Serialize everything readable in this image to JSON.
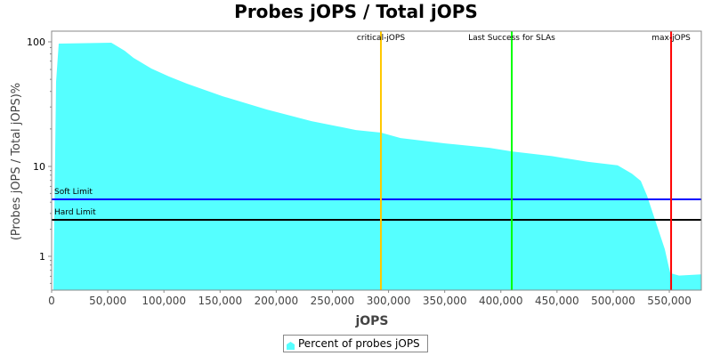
{
  "chart_data": {
    "type": "area",
    "title": "Probes jOPS / Total jOPS",
    "xlabel": "jOPS",
    "ylabel": "(Probes jOPS / Total jOPS)%",
    "xlim": [
      0,
      578500
    ],
    "ylim": [
      0.42,
      122
    ],
    "yscale": "log",
    "grid": false,
    "legend_position": "bottom",
    "x_ticks": [
      0,
      50000,
      100000,
      150000,
      200000,
      250000,
      300000,
      350000,
      400000,
      450000,
      500000,
      550000
    ],
    "x_tick_labels": [
      "0",
      "50,000",
      "100,000",
      "150,000",
      "200,000",
      "250,000",
      "300,000",
      "350,000",
      "400,000",
      "450,000",
      "500,000",
      "550,000"
    ],
    "y_ticks": [
      1,
      10,
      100
    ],
    "y_tick_labels": [
      "1",
      "10",
      "100"
    ],
    "series": [
      {
        "name": "Percent of probes jOPS",
        "color": "#55FFFF",
        "x": [
          1600,
          3960,
          6340,
          53100,
          65000,
          72900,
          88800,
          104600,
          120500,
          152200,
          191800,
          231400,
          271000,
          293200,
          310700,
          350300,
          389900,
          409700,
          445400,
          477100,
          504000,
          516700,
          524600,
          530200,
          537300,
          546000,
          550800,
          558700,
          578500
        ],
        "y": [
          0.42,
          47.7,
          96.8,
          98.4,
          84.9,
          74.3,
          61.1,
          52.6,
          46.2,
          36.6,
          28.6,
          23.1,
          19.6,
          18.7,
          16.9,
          15.3,
          14.1,
          13.2,
          12.1,
          10.9,
          10.2,
          8.3,
          6.9,
          4.71,
          2.55,
          1.2,
          0.65,
          0.61,
          0.63
        ]
      }
    ],
    "horizontal_markers": [
      {
        "label": "Soft Limit",
        "value": 4.3,
        "color": "#0000FF"
      },
      {
        "label": "Hard Limit",
        "value": 2.55,
        "color": "#000000"
      }
    ],
    "vertical_markers": [
      {
        "label": "critical-jOPS",
        "value": 293200,
        "color": "#FFC800"
      },
      {
        "label": "Last Success for SLAs",
        "value": 409700,
        "color": "#00FF00"
      },
      {
        "label": "max-jOPS",
        "value": 551600,
        "color": "#FF0000"
      }
    ]
  }
}
